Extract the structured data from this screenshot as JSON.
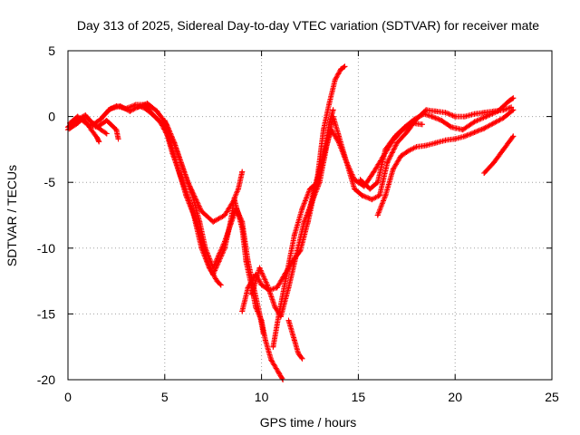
{
  "chart_data": {
    "type": "scatter",
    "title": "Day 313 of 2025, Sidereal Day-to-day VTEC variation (SDTVAR) for receiver mate",
    "xlabel": "GPS time / hours",
    "ylabel": "SDTVAR / TECUs",
    "xlim": [
      0,
      25
    ],
    "ylim": [
      -20,
      5
    ],
    "xticks": [
      0,
      5,
      10,
      15,
      20,
      25
    ],
    "yticks": [
      -20,
      -15,
      -10,
      -5,
      0,
      5
    ],
    "grid": true,
    "marker": "+",
    "color": "#ff0000",
    "tracks": [
      {
        "points": [
          [
            0.0,
            -1.0
          ],
          [
            0.5,
            -0.5
          ],
          [
            0.8,
            -0.1
          ],
          [
            1.2,
            -1.0
          ],
          [
            1.5,
            -1.6
          ],
          [
            1.6,
            -1.9
          ]
        ]
      },
      {
        "points": [
          [
            0.0,
            -0.8
          ],
          [
            0.4,
            -0.3
          ],
          [
            0.9,
            0.1
          ],
          [
            1.2,
            -0.4
          ],
          [
            1.7,
            -1.0
          ],
          [
            2.0,
            -1.3
          ]
        ]
      },
      {
        "points": [
          [
            0.1,
            -0.5
          ],
          [
            0.5,
            0.0
          ],
          [
            1.0,
            -0.6
          ],
          [
            1.5,
            -0.8
          ],
          [
            2.0,
            -0.3
          ],
          [
            2.5,
            -1.0
          ],
          [
            2.6,
            -1.7
          ]
        ]
      },
      {
        "points": [
          [
            1.3,
            -0.6
          ],
          [
            1.7,
            -0.2
          ],
          [
            2.1,
            0.5
          ],
          [
            2.5,
            0.8
          ],
          [
            3.0,
            0.6
          ],
          [
            3.5,
            0.9
          ],
          [
            4.0,
            0.9
          ],
          [
            4.3,
            0.3
          ],
          [
            4.8,
            -0.5
          ],
          [
            5.2,
            -1.6
          ],
          [
            5.6,
            -3.5
          ],
          [
            6.1,
            -6.0
          ],
          [
            6.5,
            -7.5
          ],
          [
            6.9,
            -10.0
          ],
          [
            7.3,
            -11.5
          ],
          [
            7.7,
            -12.5
          ],
          [
            7.9,
            -12.8
          ]
        ]
      },
      {
        "points": [
          [
            1.8,
            0.0
          ],
          [
            2.2,
            0.6
          ],
          [
            2.7,
            0.8
          ],
          [
            3.2,
            0.4
          ],
          [
            3.7,
            0.8
          ],
          [
            4.0,
            0.6
          ],
          [
            4.5,
            0.0
          ],
          [
            5.0,
            -0.8
          ],
          [
            5.4,
            -2.8
          ],
          [
            5.8,
            -4.5
          ],
          [
            6.3,
            -6.5
          ],
          [
            6.8,
            -8.8
          ],
          [
            7.2,
            -11.0
          ],
          [
            7.5,
            -12.0
          ],
          [
            7.8,
            -11.0
          ],
          [
            8.1,
            -10.0
          ],
          [
            8.4,
            -8.0
          ],
          [
            8.6,
            -6.2
          ],
          [
            8.8,
            -5.5
          ],
          [
            9.0,
            -4.2
          ]
        ]
      },
      {
        "points": [
          [
            3.6,
            0.7
          ],
          [
            4.1,
            1.0
          ],
          [
            4.6,
            0.4
          ],
          [
            5.1,
            -0.6
          ],
          [
            5.5,
            -2.0
          ],
          [
            6.0,
            -4.2
          ],
          [
            6.4,
            -5.8
          ],
          [
            6.8,
            -8.0
          ],
          [
            7.1,
            -10.0
          ],
          [
            7.5,
            -11.5
          ],
          [
            7.8,
            -10.5
          ],
          [
            8.1,
            -9.5
          ],
          [
            8.4,
            -8.2
          ],
          [
            8.7,
            -7.0
          ],
          [
            9.0,
            -8.0
          ],
          [
            9.3,
            -11.0
          ],
          [
            9.6,
            -13.0
          ],
          [
            9.9,
            -15.0
          ],
          [
            10.1,
            -16.5
          ]
        ]
      },
      {
        "points": [
          [
            5.0,
            -0.3
          ],
          [
            5.6,
            -2.5
          ],
          [
            6.2,
            -5.0
          ],
          [
            6.9,
            -7.2
          ],
          [
            7.5,
            -8.0
          ],
          [
            8.1,
            -7.5
          ],
          [
            8.6,
            -6.3
          ],
          [
            9.0,
            -8.5
          ],
          [
            9.2,
            -11.0
          ],
          [
            9.5,
            -13.0
          ],
          [
            9.7,
            -14.5
          ],
          [
            10.0,
            -15.5
          ],
          [
            10.2,
            -17.0
          ],
          [
            10.5,
            -18.5
          ],
          [
            10.9,
            -19.5
          ],
          [
            11.1,
            -20.0
          ]
        ]
      },
      {
        "points": [
          [
            9.0,
            -14.8
          ],
          [
            9.3,
            -13.0
          ],
          [
            9.7,
            -12.0
          ],
          [
            10.0,
            -12.8
          ],
          [
            10.4,
            -13.2
          ],
          [
            10.8,
            -13.0
          ],
          [
            11.2,
            -12.0
          ],
          [
            11.6,
            -11.0
          ],
          [
            12.0,
            -10.2
          ],
          [
            12.4,
            -8.0
          ],
          [
            12.7,
            -6.0
          ],
          [
            13.0,
            -4.0
          ],
          [
            13.3,
            -2.5
          ],
          [
            13.6,
            -1.0
          ],
          [
            14.0,
            -2.0
          ],
          [
            14.4,
            -3.5
          ],
          [
            14.8,
            -4.8
          ],
          [
            15.3,
            -5.3
          ],
          [
            15.8,
            -4.2
          ],
          [
            16.3,
            -3.0
          ],
          [
            16.8,
            -1.8
          ],
          [
            17.3,
            -1.0
          ],
          [
            17.8,
            -0.5
          ],
          [
            18.3,
            -0.6
          ]
        ]
      },
      {
        "points": [
          [
            9.5,
            -13.5
          ],
          [
            9.9,
            -11.5
          ],
          [
            10.3,
            -12.8
          ],
          [
            10.7,
            -14.5
          ],
          [
            11.0,
            -15.2
          ],
          [
            11.4,
            -13.0
          ],
          [
            11.8,
            -10.5
          ],
          [
            12.2,
            -8.0
          ],
          [
            12.6,
            -6.5
          ],
          [
            13.0,
            -5.0
          ],
          [
            13.4,
            -2.0
          ],
          [
            13.7,
            0.0
          ],
          [
            14.0,
            -1.5
          ],
          [
            14.4,
            -3.5
          ],
          [
            14.8,
            -5.5
          ],
          [
            15.2,
            -6.0
          ],
          [
            15.7,
            -6.3
          ],
          [
            16.1,
            -6.0
          ],
          [
            16.5,
            -3.5
          ],
          [
            17.0,
            -2.0
          ],
          [
            17.5,
            -1.2
          ],
          [
            18.0,
            -0.2
          ],
          [
            18.5,
            0.5
          ],
          [
            19.0,
            0.4
          ],
          [
            19.5,
            0.3
          ],
          [
            20.0,
            0.0
          ],
          [
            20.5,
            0.0
          ],
          [
            21.0,
            0.2
          ],
          [
            21.5,
            0.3
          ],
          [
            22.0,
            0.4
          ],
          [
            22.5,
            0.5
          ],
          [
            22.9,
            0.7
          ]
        ]
      },
      {
        "points": [
          [
            10.6,
            -17.5
          ],
          [
            10.9,
            -15.0
          ],
          [
            11.3,
            -12.0
          ],
          [
            11.7,
            -9.0
          ],
          [
            12.1,
            -7.0
          ],
          [
            12.5,
            -5.5
          ],
          [
            12.9,
            -5.0
          ],
          [
            13.2,
            -3.0
          ],
          [
            13.5,
            -0.5
          ],
          [
            13.7,
            0.5
          ]
        ]
      },
      {
        "points": [
          [
            11.4,
            -15.5
          ],
          [
            11.7,
            -17.0
          ],
          [
            11.9,
            -18.0
          ],
          [
            12.1,
            -18.4
          ]
        ]
      },
      {
        "points": [
          [
            12.4,
            -7.5
          ],
          [
            12.9,
            -4.5
          ],
          [
            13.2,
            -1.0
          ],
          [
            13.5,
            1.0
          ],
          [
            13.8,
            2.8
          ],
          [
            14.1,
            3.6
          ],
          [
            14.3,
            3.8
          ]
        ]
      },
      {
        "points": [
          [
            15.1,
            -4.8
          ],
          [
            15.6,
            -5.5
          ],
          [
            16.0,
            -5.0
          ],
          [
            16.4,
            -2.5
          ],
          [
            16.9,
            -1.5
          ],
          [
            17.4,
            -0.8
          ],
          [
            17.9,
            -0.2
          ],
          [
            18.4,
            0.2
          ],
          [
            18.8,
            0.0
          ],
          [
            19.3,
            -0.3
          ],
          [
            19.8,
            -0.8
          ],
          [
            20.4,
            -1.0
          ],
          [
            21.0,
            -0.4
          ],
          [
            21.6,
            0.0
          ],
          [
            22.2,
            0.4
          ],
          [
            22.8,
            1.2
          ],
          [
            23.0,
            1.4
          ]
        ]
      },
      {
        "points": [
          [
            16.0,
            -7.5
          ],
          [
            16.4,
            -6.0
          ],
          [
            16.8,
            -4.0
          ],
          [
            17.2,
            -3.0
          ],
          [
            17.6,
            -2.6
          ],
          [
            18.0,
            -2.3
          ],
          [
            18.5,
            -2.2
          ],
          [
            19.0,
            -2.0
          ],
          [
            19.5,
            -1.8
          ],
          [
            20.0,
            -1.7
          ],
          [
            20.5,
            -1.5
          ],
          [
            21.0,
            -1.2
          ],
          [
            21.5,
            -0.9
          ],
          [
            22.0,
            -0.5
          ],
          [
            22.5,
            -0.1
          ],
          [
            23.0,
            0.5
          ]
        ]
      },
      {
        "points": [
          [
            21.5,
            -4.3
          ],
          [
            22.0,
            -3.5
          ],
          [
            22.5,
            -2.5
          ],
          [
            23.0,
            -1.5
          ]
        ]
      }
    ]
  }
}
